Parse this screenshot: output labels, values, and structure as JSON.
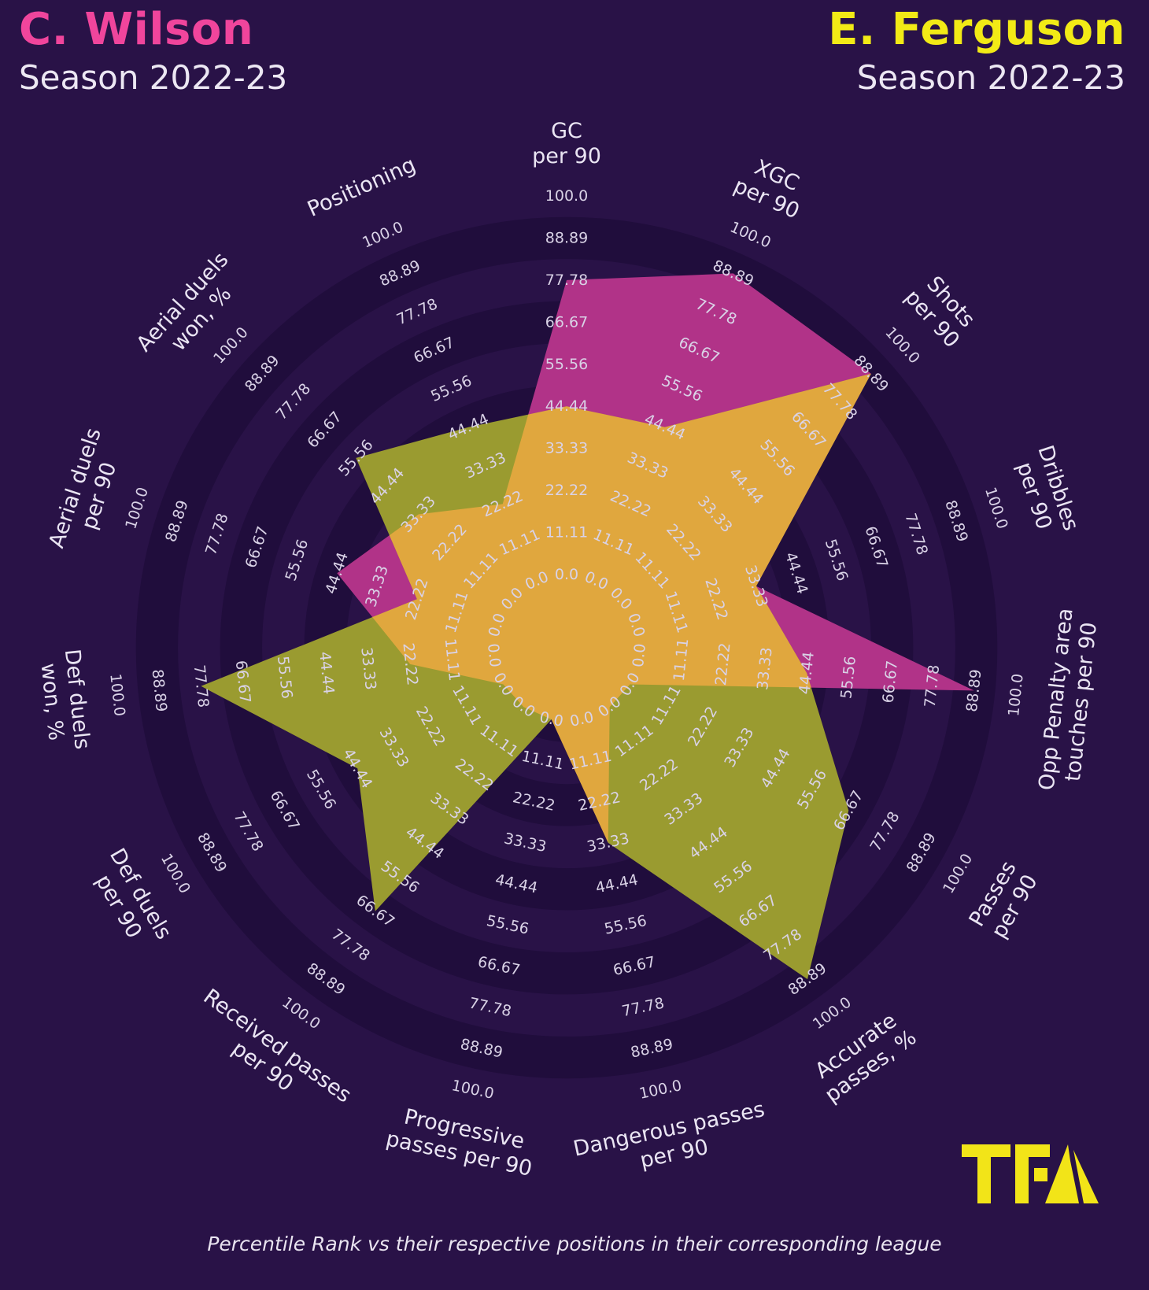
{
  "header": {
    "left": {
      "name": "C. Wilson",
      "season": "Season 2022-23"
    },
    "right": {
      "name": "E. Ferguson",
      "season": "Season 2022-23"
    }
  },
  "footer": {
    "note": "Percentile Rank vs their respective positions in their corresponding league"
  },
  "logo": {
    "text": "TFA"
  },
  "colors": {
    "background": "#291247",
    "ring_dark": "#200d3c",
    "tick_text": "#d9d2e6",
    "axis_text": "#eae5f3",
    "wilson_fill": "#b13388",
    "ferguson_fill": "#9a9b30",
    "overlap_fill": "#e0a73e",
    "name_left": "#f0459c",
    "name_right": "#f2ea16",
    "season_text": "#ece7f3",
    "footer_text": "#e9e4f0",
    "logo_yellow": "#f2e418"
  },
  "chart_data": {
    "type": "radar",
    "title": "Percentile Rank comparison radar",
    "axes": [
      "GC per 90",
      "XGC per 90",
      "Shots per 90",
      "Dribbles per 90",
      "Opp Penalty area touches per 90",
      "Passes per 90",
      "Accurate passes, %",
      "Dangerous passes per 90",
      "Progressive passes per 90",
      "Received passes per 90",
      "Def duels per 90",
      "Def duels won, %",
      "Aerial duels per 90",
      "Aerial duels won, %",
      "Positioning"
    ],
    "axis_label_lines": [
      [
        "GC",
        "per 90"
      ],
      [
        "XGC",
        "per 90"
      ],
      [
        "Shots",
        "per 90"
      ],
      [
        "Dribbles",
        "per 90"
      ],
      [
        "Opp Penalty area",
        "touches per 90"
      ],
      [
        "Passes",
        "per 90"
      ],
      [
        "Accurate",
        "passes, %"
      ],
      [
        "Dangerous passes",
        "per 90"
      ],
      [
        "Progressive",
        "passes per 90"
      ],
      [
        "Received passes",
        "per 90"
      ],
      [
        "Def duels",
        "per 90"
      ],
      [
        "Def duels",
        "won, %"
      ],
      [
        "Aerial duels",
        "per 90"
      ],
      [
        "Aerial duels",
        "won, %"
      ],
      [
        "Positioning"
      ]
    ],
    "tick_labels": [
      "0.0",
      "11.11",
      "22.22",
      "33.33",
      "44.44",
      "55.56",
      "66.67",
      "77.78",
      "88.89",
      "100.0"
    ],
    "range": [
      0,
      100
    ],
    "series": [
      {
        "name": "C. Wilson",
        "values": [
          77.78,
          88.89,
          88.89,
          33.33,
          88.89,
          0.0,
          0.0,
          33.33,
          0.0,
          0.0,
          0.0,
          22.22,
          44.44,
          33.33,
          22.22
        ]
      },
      {
        "name": "E. Ferguson",
        "values": [
          44.44,
          44.44,
          88.89,
          33.33,
          44.44,
          66.67,
          88.89,
          33.33,
          0.0,
          66.67,
          44.44,
          77.78,
          22.22,
          55.56,
          44.44
        ]
      }
    ],
    "legend_position": "none",
    "grid": "concentric-rings-alternating",
    "note": "values are percentile ranks, rings every 11.11"
  }
}
